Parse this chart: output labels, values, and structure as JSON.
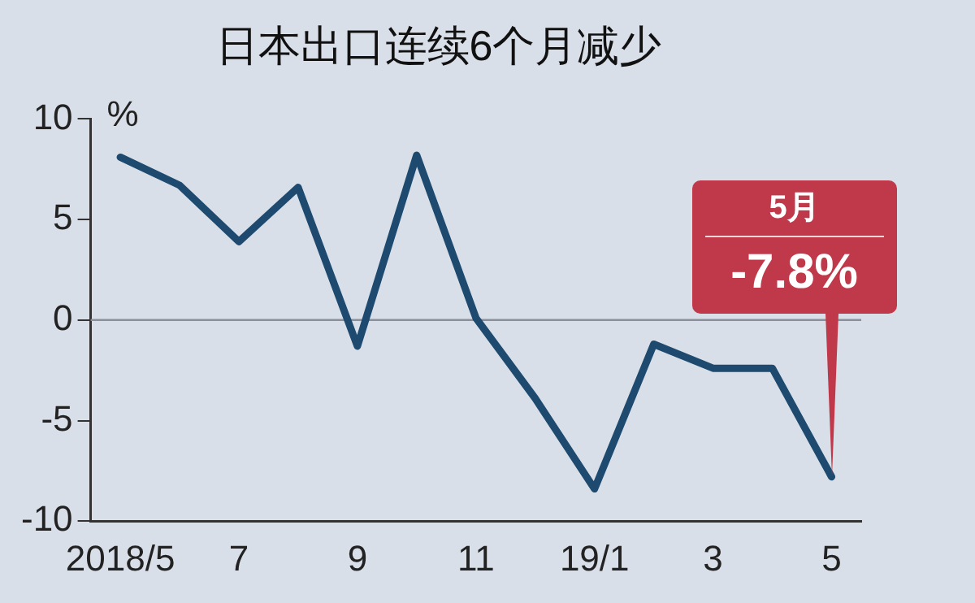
{
  "chart_data": {
    "type": "line",
    "title": "日本出口连续6个月减少",
    "ylabel": "%",
    "categories": [
      "2018/5",
      null,
      "7",
      null,
      "9",
      null,
      "11",
      null,
      "19/1",
      null,
      "3",
      null,
      "5"
    ],
    "series": [
      {
        "color": "#1d4a6e",
        "values": [
          8.1,
          6.7,
          3.9,
          6.6,
          -1.3,
          8.2,
          0.1,
          -3.9,
          -8.4,
          -1.2,
          -2.4,
          -2.4,
          -7.8
        ]
      }
    ],
    "ylim": [
      -10,
      10
    ],
    "yticks": [
      -10,
      -5,
      0,
      5,
      10
    ],
    "grid": false,
    "legend": false,
    "marker": "none",
    "line_style": "solid",
    "ref_lines": [
      {
        "axis": "y",
        "value": 0,
        "color": "#8a8f99"
      }
    ],
    "annotations": [
      "5月",
      {
        "text": "-7.8%",
        "x": "5",
        "y": -7.8
      }
    ]
  }
}
